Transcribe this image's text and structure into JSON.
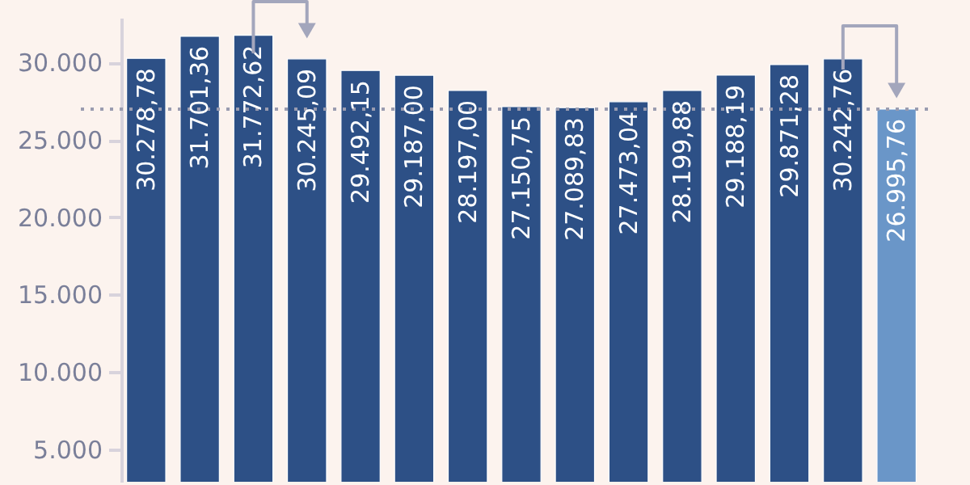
{
  "chart_data": {
    "type": "bar",
    "categories": [
      null,
      null,
      null,
      null,
      null,
      null,
      null,
      null,
      null,
      null,
      null,
      null,
      null,
      null,
      null
    ],
    "values": [
      30278.78,
      31701.36,
      31772.62,
      30245.09,
      29492.15,
      29187.0,
      28197.0,
      27150.75,
      27089.83,
      27473.04,
      28199.88,
      29188.19,
      29871.28,
      30242.76,
      26995.76
    ],
    "value_labels": [
      "30.278,78",
      "31.701,36",
      "31.772,62",
      "30.245,09",
      "29.492,15",
      "29.187,00",
      "28.197,00",
      "27.150,75",
      "27.089,83",
      "27.473,04",
      "28.199,88",
      "29.188,19",
      "29.871,28",
      "30.242,76",
      "26.995,76"
    ],
    "colors": [
      "#2d5086",
      "#2d5086",
      "#2d5086",
      "#2d5086",
      "#2d5086",
      "#2d5086",
      "#2d5086",
      "#2d5086",
      "#2d5086",
      "#2d5086",
      "#2d5086",
      "#2d5086",
      "#2d5086",
      "#2d5086",
      "#6a96c8"
    ],
    "ylim": [
      2900,
      32900
    ],
    "yticks": [
      {
        "value": 5000,
        "label": "5.000"
      },
      {
        "value": 10000,
        "label": "10.000"
      },
      {
        "value": 15000,
        "label": "15.000"
      },
      {
        "value": 20000,
        "label": "20.000"
      },
      {
        "value": 25000,
        "label": "25.000"
      },
      {
        "value": 30000,
        "label": "30.000"
      }
    ],
    "ref_lines": [
      {
        "axis": "y",
        "value": 26995.76,
        "color": "#9a9cb0",
        "line_style": "dotted"
      }
    ],
    "grid": false
  }
}
